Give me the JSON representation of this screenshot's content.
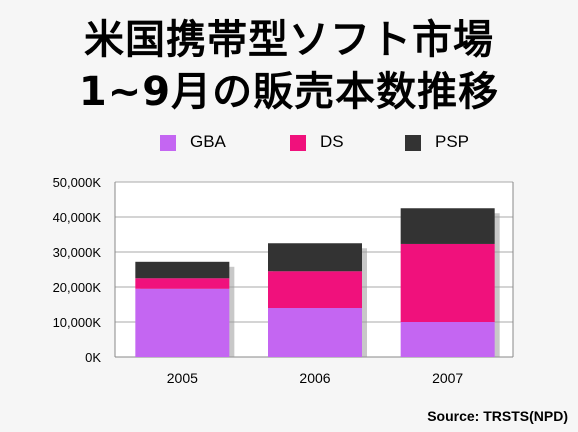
{
  "title_line1": "米国携帯型ソフト市場",
  "title_line2": "1~9月の販売本数推移",
  "source": "Source: TRSTS(NPD)",
  "chart_data": {
    "type": "bar",
    "stacked": true,
    "categories": [
      "2005",
      "2006",
      "2007"
    ],
    "series": [
      {
        "name": "GBA",
        "color": "#c466f2",
        "values": [
          19500,
          14000,
          10000
        ]
      },
      {
        "name": "DS",
        "color": "#f0117c",
        "values": [
          3000,
          10500,
          22300
        ]
      },
      {
        "name": "PSP",
        "color": "#333333",
        "values": [
          4700,
          8000,
          10200
        ]
      }
    ],
    "ylim": [
      0,
      50000
    ],
    "yticks": [
      "0K",
      "10,000K",
      "20,000K",
      "30,000K",
      "40,000K",
      "50,000K"
    ],
    "grid": true,
    "legend": "top"
  }
}
